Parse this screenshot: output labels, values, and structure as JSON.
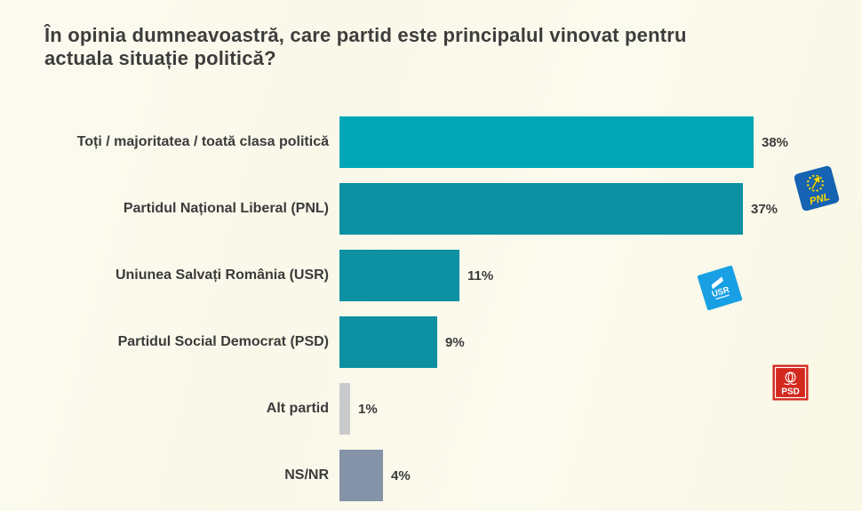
{
  "title": "În opinia dumneavoastră, care partid este principalul vinovat pentru actuala situație politică?",
  "chart_data": {
    "type": "bar",
    "orientation": "horizontal",
    "title": "În opinia dumneavoastră, care partid este principalul vinovat pentru actuala situație politică?",
    "categories": [
      "Toți / majoritatea / toată clasa politică",
      "Partidul Național Liberal (PNL)",
      "Uniunea Salvați România (USR)",
      "Partidul Social Democrat (PSD)",
      "Alt partid",
      "NS/NR"
    ],
    "values": [
      38,
      37,
      11,
      9,
      1,
      4
    ],
    "value_labels": [
      "38%",
      "37%",
      "11%",
      "9%",
      "1%",
      "4%"
    ],
    "bar_colors": [
      "#00a6b6",
      "#0d90a1",
      "#0d90a1",
      "#0d90a1",
      "#c8cacc",
      "#8593a9"
    ],
    "xlabel": "",
    "ylabel": "",
    "xlim": [
      0,
      40
    ],
    "grid": false,
    "legend": "none",
    "data_labels": "outside-end"
  },
  "logos": {
    "pnl": {
      "label": "PNL",
      "square_color": "#1563b2",
      "accent_color": "#fed900"
    },
    "usr": {
      "label": "USR",
      "square_color": "#189fe4",
      "accent_color": "#ffffff"
    },
    "psd": {
      "label": "PSD",
      "square_color": "#d3281e",
      "accent_color": "#ffffff"
    }
  },
  "colors": {
    "background": "#faf8e9",
    "text": "#3b3b3b",
    "teal_light": "#00a6b6",
    "teal_dark": "#0d90a1",
    "gray": "#c8cacc",
    "slate": "#8593a9"
  }
}
